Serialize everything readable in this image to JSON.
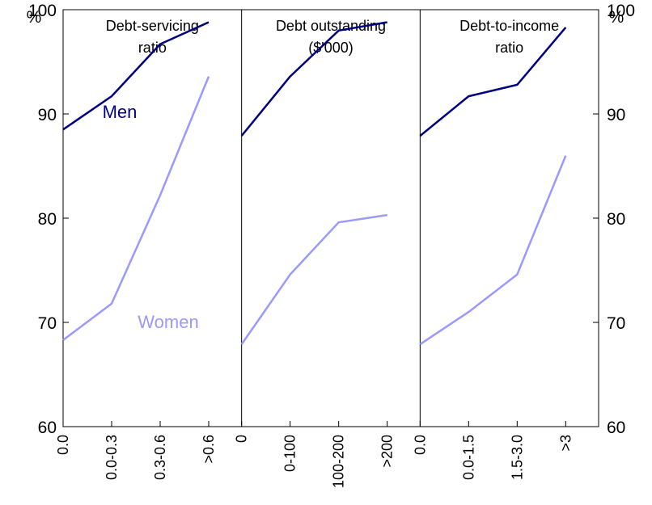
{
  "axes": {
    "left_unit": "%",
    "right_unit": "%"
  },
  "colors": {
    "men": "#000080",
    "women": "#9999ff",
    "frame": "#000000"
  },
  "chart_data": {
    "type": "line",
    "ylim": [
      60,
      100
    ],
    "yticks": [
      60,
      70,
      80,
      90,
      100
    ],
    "grid": false,
    "panels": [
      {
        "title_lines": [
          "Debt-servicing",
          "ratio"
        ],
        "categories": [
          "0.0",
          "0.0-0.3",
          "0.3-0.6",
          ">0.6"
        ],
        "series": [
          {
            "name": "Men",
            "values": [
              88.5,
              91.7,
              96.7,
              98.8
            ]
          },
          {
            "name": "Women",
            "values": [
              68.3,
              71.8,
              82.2,
              93.6
            ]
          }
        ]
      },
      {
        "title_lines": [
          "Debt outstanding",
          "($'000)"
        ],
        "categories": [
          "0",
          "0-100",
          "100-200",
          ">200"
        ],
        "series": [
          {
            "name": "",
            "values": [
              87.9,
              93.6,
              98.0,
              98.8
            ]
          },
          {
            "name": "",
            "values": [
              67.9,
              74.6,
              79.6,
              80.3
            ]
          }
        ]
      },
      {
        "title_lines": [
          "Debt-to-income",
          "ratio"
        ],
        "categories": [
          "0.0",
          "0.0-1.5",
          "1.5-3.0",
          ">3"
        ],
        "series": [
          {
            "name": "",
            "values": [
              87.9,
              91.7,
              92.8,
              98.3
            ]
          },
          {
            "name": "",
            "values": [
              67.9,
              71.0,
              74.6,
              86.0
            ]
          }
        ]
      }
    ]
  }
}
